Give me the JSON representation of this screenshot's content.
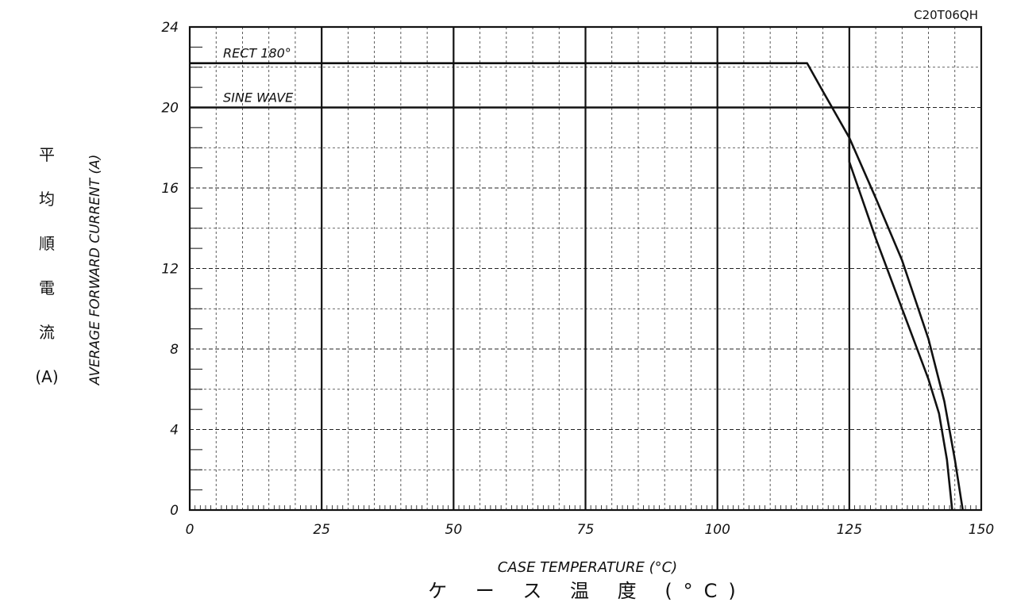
{
  "chart_data": {
    "type": "line",
    "part_number": "C20T06QH",
    "xlabel": "CASE TEMPERATURE (°C)",
    "xlabel_ja": "ケ ー ス 温 度 (°C)",
    "ylabel": "AVERAGE FORWARD CURRENT (A)",
    "ylabel_ja": [
      "平",
      "均",
      "順",
      "電",
      "流",
      "(A)"
    ],
    "xlim": [
      0,
      150
    ],
    "ylim": [
      0,
      24
    ],
    "x_ticks": [
      "0",
      "25",
      "50",
      "75",
      "100",
      "125",
      "150"
    ],
    "y_ticks": [
      "0",
      "4",
      "8",
      "12",
      "16",
      "20",
      "24"
    ],
    "grid": true,
    "series": [
      {
        "name": "RECT 180°",
        "points": [
          [
            0,
            22.2
          ],
          [
            117,
            22.2
          ],
          [
            120,
            20.8
          ],
          [
            125,
            18.5
          ],
          [
            130,
            15.5
          ],
          [
            135,
            12.4
          ],
          [
            140,
            8.5
          ],
          [
            143,
            5.4
          ],
          [
            145,
            2.5
          ],
          [
            146.5,
            0
          ]
        ]
      },
      {
        "name": "SINE WAVE",
        "points": [
          [
            0,
            20
          ],
          [
            125,
            20
          ],
          [
            125,
            17.3
          ],
          [
            130,
            13.5
          ],
          [
            135,
            10
          ],
          [
            140,
            6.5
          ],
          [
            142,
            4.8
          ],
          [
            143.5,
            2.5
          ],
          [
            144.5,
            0
          ]
        ]
      }
    ]
  }
}
